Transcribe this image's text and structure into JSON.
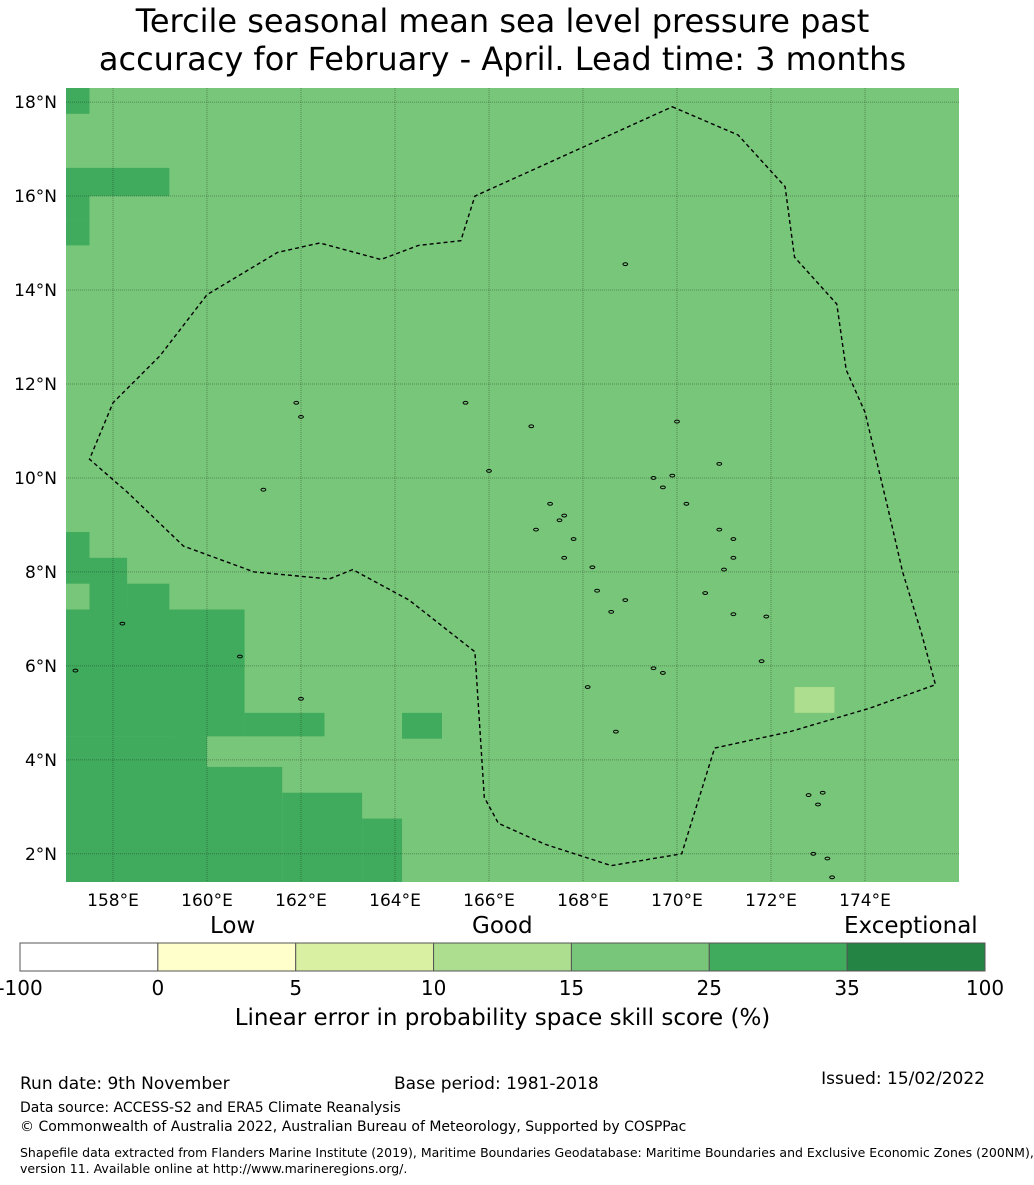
{
  "title": {
    "line1": "Tercile seasonal mean sea level pressure past",
    "line2": "accuracy for February - April. Lead time: 3 months"
  },
  "map": {
    "lon_range": [
      157.0,
      176.0
    ],
    "lat_range": [
      1.4,
      18.3
    ],
    "lon_ticks": [
      158,
      160,
      162,
      164,
      166,
      168,
      170,
      172,
      174
    ],
    "lat_ticks": [
      2,
      4,
      6,
      8,
      10,
      12,
      14,
      16,
      18
    ],
    "lon_tick_labels": [
      "158°E",
      "160°E",
      "162°E",
      "164°E",
      "166°E",
      "168°E",
      "170°E",
      "172°E",
      "174°E"
    ],
    "lat_tick_labels": [
      "2°N",
      "4°N",
      "6°N",
      "8°N",
      "10°N",
      "12°N",
      "14°N",
      "16°N",
      "18°N"
    ],
    "background_skill_class": "15-25",
    "cells": [
      {
        "lon": [
          157.0,
          157.5
        ],
        "lat": [
          17.75,
          18.3
        ],
        "class": "25-35"
      },
      {
        "lon": [
          157.0,
          157.5
        ],
        "lat": [
          15.5,
          16.6
        ],
        "class": "25-35"
      },
      {
        "lon": [
          157.5,
          159.2
        ],
        "lat": [
          16.0,
          16.6
        ],
        "class": "25-35"
      },
      {
        "lon": [
          157.0,
          157.5
        ],
        "lat": [
          14.95,
          15.5
        ],
        "class": "25-35"
      },
      {
        "lon": [
          157.0,
          157.5
        ],
        "lat": [
          7.75,
          8.85
        ],
        "class": "25-35"
      },
      {
        "lon": [
          157.5,
          158.3
        ],
        "lat": [
          7.2,
          8.3
        ],
        "class": "25-35"
      },
      {
        "lon": [
          158.3,
          159.2
        ],
        "lat": [
          7.2,
          7.75
        ],
        "class": "25-35"
      },
      {
        "lon": [
          157.0,
          160.0
        ],
        "lat": [
          4.5,
          7.2
        ],
        "class": "25-35"
      },
      {
        "lon": [
          159.2,
          160.8
        ],
        "lat": [
          4.5,
          7.2
        ],
        "class": "25-35"
      },
      {
        "lon": [
          160.8,
          162.5
        ],
        "lat": [
          4.5,
          5.0
        ],
        "class": "25-35"
      },
      {
        "lon": [
          157.0,
          160.0
        ],
        "lat": [
          1.4,
          4.5
        ],
        "class": "25-35"
      },
      {
        "lon": [
          160.0,
          161.6
        ],
        "lat": [
          1.4,
          3.85
        ],
        "class": "25-35"
      },
      {
        "lon": [
          161.6,
          163.3
        ],
        "lat": [
          1.4,
          3.3
        ],
        "class": "25-35"
      },
      {
        "lon": [
          163.3,
          164.15
        ],
        "lat": [
          1.4,
          2.75
        ],
        "class": "25-35"
      },
      {
        "lon": [
          164.15,
          165.0
        ],
        "lat": [
          4.45,
          5.0
        ],
        "class": "25-35"
      },
      {
        "lon": [
          172.5,
          173.35
        ],
        "lat": [
          5.0,
          5.55
        ],
        "class": "10-15"
      }
    ],
    "eez_boundary": [
      [
        169.9,
        17.9
      ],
      [
        171.3,
        17.3
      ],
      [
        172.3,
        16.2
      ],
      [
        172.5,
        14.7
      ],
      [
        173.4,
        13.7
      ],
      [
        173.6,
        12.3
      ],
      [
        174.0,
        11.4
      ],
      [
        174.5,
        9.3
      ],
      [
        174.8,
        8.0
      ],
      [
        175.2,
        6.7
      ],
      [
        175.5,
        5.6
      ],
      [
        174.1,
        5.1
      ],
      [
        172.4,
        4.6
      ],
      [
        170.8,
        4.25
      ],
      [
        170.1,
        2.0
      ],
      [
        168.6,
        1.75
      ],
      [
        167.2,
        2.2
      ],
      [
        166.2,
        2.65
      ],
      [
        165.9,
        3.2
      ],
      [
        165.7,
        6.3
      ],
      [
        164.3,
        7.4
      ],
      [
        163.1,
        8.05
      ],
      [
        162.6,
        7.85
      ],
      [
        161.0,
        8.0
      ],
      [
        159.5,
        8.55
      ],
      [
        158.3,
        9.7
      ],
      [
        157.5,
        10.4
      ],
      [
        158.0,
        11.6
      ],
      [
        159.0,
        12.6
      ],
      [
        160.0,
        13.9
      ],
      [
        161.5,
        14.8
      ],
      [
        162.4,
        15.0
      ],
      [
        163.7,
        14.65
      ],
      [
        164.5,
        14.95
      ],
      [
        165.4,
        15.05
      ],
      [
        165.7,
        16.0
      ],
      [
        169.9,
        17.9
      ]
    ],
    "islands": [
      [
        158.2,
        6.9
      ],
      [
        161.9,
        11.6
      ],
      [
        162.0,
        11.3
      ],
      [
        165.5,
        11.6
      ],
      [
        166.9,
        11.1
      ],
      [
        168.9,
        14.55
      ],
      [
        170.0,
        11.2
      ],
      [
        170.9,
        10.3
      ],
      [
        166.0,
        10.15
      ],
      [
        169.5,
        10.0
      ],
      [
        169.7,
        9.8
      ],
      [
        169.9,
        10.05
      ],
      [
        170.2,
        9.45
      ],
      [
        167.3,
        9.45
      ],
      [
        167.6,
        9.2
      ],
      [
        167.5,
        9.1
      ],
      [
        167.0,
        8.9
      ],
      [
        167.8,
        8.7
      ],
      [
        170.9,
        8.9
      ],
      [
        171.2,
        8.7
      ],
      [
        167.6,
        8.3
      ],
      [
        171.2,
        8.3
      ],
      [
        171.0,
        8.05
      ],
      [
        168.2,
        8.1
      ],
      [
        168.3,
        7.6
      ],
      [
        168.6,
        7.15
      ],
      [
        168.9,
        7.4
      ],
      [
        171.2,
        7.1
      ],
      [
        171.9,
        7.05
      ],
      [
        170.6,
        7.55
      ],
      [
        171.8,
        6.1
      ],
      [
        169.5,
        5.95
      ],
      [
        169.7,
        5.85
      ],
      [
        168.1,
        5.55
      ],
      [
        160.7,
        6.2
      ],
      [
        157.2,
        5.9
      ],
      [
        162.0,
        5.3
      ],
      [
        168.7,
        4.6
      ],
      [
        173.1,
        3.3
      ],
      [
        172.8,
        3.25
      ],
      [
        173.0,
        3.05
      ],
      [
        172.9,
        2.0
      ],
      [
        173.2,
        1.9
      ],
      [
        173.3,
        1.5
      ],
      [
        161.2,
        9.75
      ]
    ]
  },
  "colorbar": {
    "categories": [
      "Low",
      "Good",
      "Exceptional"
    ],
    "tick_labels": [
      "-100",
      "0",
      "5",
      "10",
      "15",
      "25",
      "35",
      "100"
    ],
    "bins": [
      "-100-0",
      "0-5",
      "5-10",
      "10-15",
      "15-25",
      "25-35",
      "35-100"
    ],
    "colors": [
      "#ffffff",
      "#ffffcc",
      "#d9f0a3",
      "#addd8e",
      "#78c679",
      "#41ab5d",
      "#238443"
    ],
    "title": "Linear error in probability space skill score (%)"
  },
  "footer": {
    "run_date": "Run date: 9th November",
    "base_period": "Base period: 1981-2018",
    "issued": "Issued: 15/02/2022",
    "data_source": "Data source: ACCESS-S2 and ERA5 Climate Reanalysis",
    "copyright": "© Commonwealth of Australia 2022, Australian Bureau of Meteorology, Supported by COSPPac",
    "shapefile_line1": "Shapefile data extracted from Flanders Marine Institute (2019), Maritime Boundaries Geodatabase: Maritime Boundaries and Exclusive Economic Zones (200NM),",
    "shapefile_line2": "version 11. Available online at http://www.marineregions.org/."
  }
}
